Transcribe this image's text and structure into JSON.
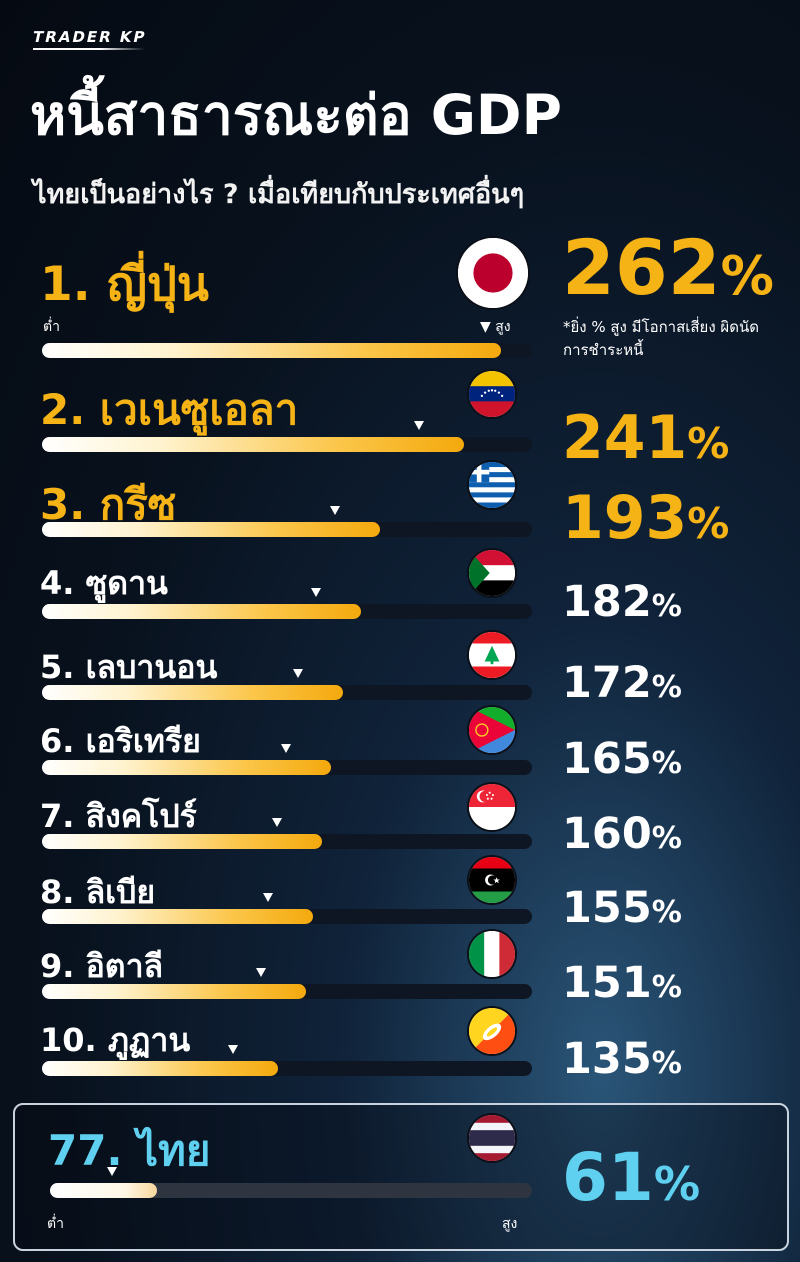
{
  "brand": "TRADER KP",
  "title": "หนี้สาธารณะต่อ GDP",
  "subtitle": "ไทยเป็นอย่างไร ? เมื่อเทียบกับประเทศอื่นๆ",
  "scale_low": "ต่ำ",
  "scale_high_marker": "▼ สูง",
  "scale_high": "สูง",
  "note": "*ยิ่ง % สูง มีโอกาสเสี่ยง ผิดนัดการชำระหนี้",
  "percent_sign": "%",
  "colors": {
    "top3": "#f6b316",
    "thailand": "#5fd0ef",
    "background": "#08111d"
  },
  "chart_data": {
    "type": "bar",
    "title": "หนี้สาธารณะต่อ GDP",
    "unit": "%",
    "categories": [
      "1. ญี่ปุ่น",
      "2. เวเนซูเอลา",
      "3. กรีซ",
      "4. ซูดาน",
      "5. เลบานอน",
      "6. เอริเทรีย",
      "7. สิงคโปร์",
      "8. ลิเบีย",
      "9. อิตาลี",
      "10. ภูฏาน",
      "77. ไทย"
    ],
    "values": [
      262,
      241,
      193,
      182,
      172,
      165,
      160,
      155,
      151,
      135,
      61
    ],
    "display_values": [
      "262",
      "241",
      "193",
      "182",
      "172",
      "165",
      "160",
      "155",
      "151",
      "135",
      "61"
    ],
    "flags": [
      "japan-flag",
      "venezuela-flag",
      "greece-flag",
      "sudan-flag",
      "lebanon-flag",
      "eritrea-flag",
      "singapore-flag",
      "libya-flag",
      "italy-flag",
      "bhutan-flag",
      "thailand-flag"
    ]
  }
}
